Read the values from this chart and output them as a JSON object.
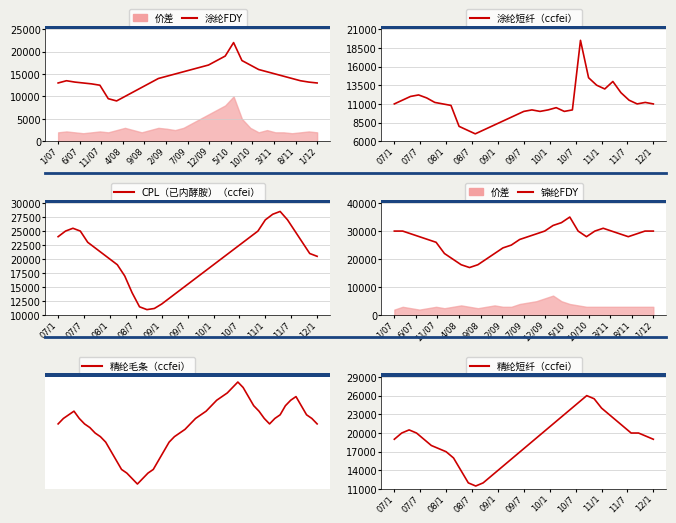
{
  "chart1": {
    "title": "价差 — 涂纶FDY",
    "legend1": "价差",
    "legend2": "涂纶FDY",
    "xticks": [
      "1/07",
      "6/07",
      "11/07",
      "4/08",
      "9/08",
      "2/09",
      "7/09",
      "12/09",
      "5/10",
      "10/10",
      "3/11",
      "8/11",
      "1/12"
    ],
    "ylim": [
      0,
      25000
    ],
    "yticks": [
      0,
      5000,
      10000,
      15000,
      20000,
      25000
    ],
    "line_color": "#cc0000",
    "fill_color": "#f4a0a0",
    "line_data": [
      13000,
      13500,
      13200,
      13000,
      12800,
      12500,
      9500,
      9000,
      10000,
      11000,
      12000,
      13000,
      14000,
      14500,
      15000,
      15500,
      16000,
      16500,
      17000,
      18000,
      19000,
      22000,
      18000,
      17000,
      16000,
      15500,
      15000,
      14500,
      14000,
      13500,
      13200,
      13000
    ],
    "fill_data": [
      2000,
      2200,
      2000,
      1800,
      2000,
      2200,
      2000,
      2500,
      3000,
      2500,
      2000,
      2500,
      3000,
      2800,
      2500,
      3000,
      4000,
      5000,
      6000,
      7000,
      8000,
      10000,
      5000,
      3000,
      2000,
      2500,
      2000,
      2000,
      1800,
      2000,
      2200,
      2000
    ]
  },
  "chart2": {
    "title": "涂纶短纤（ccfei）",
    "xticks": [
      "07/1",
      "07/7",
      "08/1",
      "08/7",
      "09/1",
      "09/7",
      "10/1",
      "10/7",
      "11/1",
      "11/7",
      "12/1"
    ],
    "ylim": [
      6000,
      21000
    ],
    "yticks": [
      6000,
      8500,
      11000,
      13500,
      16000,
      18500,
      21000
    ],
    "line_color": "#cc0000",
    "line_data": [
      11000,
      11500,
      12000,
      12200,
      11800,
      11200,
      11000,
      10800,
      8000,
      7500,
      7000,
      7500,
      8000,
      8500,
      9000,
      9500,
      10000,
      10200,
      10000,
      10200,
      10500,
      10000,
      10200,
      19500,
      14500,
      13500,
      13000,
      14000,
      12500,
      11500,
      11000,
      11200,
      11000
    ]
  },
  "chart3": {
    "title": "CPL（已内酵胺）（ccfei）",
    "xticks": [
      "07/1",
      "07/7",
      "08/1",
      "08/7",
      "09/1",
      "09/7",
      "10/1",
      "10/7",
      "11/1",
      "11/7",
      "12/1"
    ],
    "ylim": [
      10000,
      30000
    ],
    "yticks": [
      10000,
      12500,
      15000,
      17500,
      20000,
      22500,
      25000,
      27500,
      30000
    ],
    "line_color": "#cc0000",
    "line_data": [
      24000,
      25000,
      25500,
      25000,
      23000,
      22000,
      21000,
      20000,
      19000,
      17000,
      14000,
      11500,
      11000,
      11200,
      12000,
      13000,
      14000,
      15000,
      16000,
      17000,
      18000,
      19000,
      20000,
      21000,
      22000,
      23000,
      24000,
      25000,
      27000,
      28000,
      28500,
      27000,
      25000,
      23000,
      21000,
      20500
    ]
  },
  "chart4": {
    "title": "价差 — 锦纶FDY",
    "legend1": "价差",
    "legend2": "锦纶FDY",
    "xticks": [
      "1/07",
      "6/07",
      "11/07",
      "4/08",
      "9/08",
      "2/09",
      "7/09",
      "12/09",
      "5/10",
      "10/10",
      "3/11",
      "8/11",
      "1/12"
    ],
    "ylim": [
      0,
      40000
    ],
    "yticks": [
      0,
      10000,
      20000,
      30000,
      40000
    ],
    "line_color": "#cc0000",
    "fill_color": "#f4a0a0",
    "line_data": [
      30000,
      30000,
      29000,
      28000,
      27000,
      26000,
      22000,
      20000,
      18000,
      17000,
      18000,
      20000,
      22000,
      24000,
      25000,
      27000,
      28000,
      29000,
      30000,
      32000,
      33000,
      35000,
      30000,
      28000,
      30000,
      31000,
      30000,
      29000,
      28000,
      29000,
      30000,
      30000
    ],
    "fill_data": [
      2000,
      3000,
      2500,
      2000,
      2500,
      3000,
      2500,
      3000,
      3500,
      3000,
      2500,
      3000,
      3500,
      3000,
      3000,
      4000,
      4500,
      5000,
      6000,
      7000,
      5000,
      4000,
      3500,
      3000,
      3000,
      3000,
      3000,
      3000,
      3000,
      3000,
      3000,
      3000
    ]
  },
  "chart5": {
    "title": "精纶毛条（ccfei）",
    "line_color": "#cc0000",
    "line_data": [
      145,
      148,
      150,
      152,
      148,
      145,
      143,
      140,
      138,
      135,
      130,
      125,
      120,
      118,
      115,
      112,
      115,
      118,
      120,
      125,
      130,
      135,
      138,
      140,
      142,
      145,
      148,
      150,
      152,
      155,
      158,
      160,
      162,
      165,
      168,
      165,
      160,
      155,
      152,
      148,
      145,
      148,
      150,
      155,
      158,
      160,
      155,
      150,
      148,
      145
    ]
  },
  "chart6": {
    "title": "精纶短纤（ccfei）",
    "xticks": [
      "07/1",
      "07/7",
      "08/1",
      "08/7",
      "09/1",
      "09/7",
      "10/1",
      "10/7",
      "11/1",
      "11/7",
      "12/1"
    ],
    "ylim": [
      11000,
      29000
    ],
    "yticks": [
      11000,
      14000,
      17000,
      20000,
      23000,
      26000,
      29000
    ],
    "line_color": "#cc0000",
    "line_data": [
      19000,
      20000,
      20500,
      20000,
      19000,
      18000,
      17500,
      17000,
      16000,
      14000,
      12000,
      11500,
      12000,
      13000,
      14000,
      15000,
      16000,
      17000,
      18000,
      19000,
      20000,
      21000,
      22000,
      23000,
      24000,
      25000,
      26000,
      25500,
      24000,
      23000,
      22000,
      21000,
      20000,
      20000,
      19500,
      19000
    ]
  },
  "bg_color": "#f0f0eb",
  "plot_bg": "#ffffff",
  "title_fontsize": 9,
  "tick_fontsize": 7,
  "legend_fontsize": 8,
  "header_color": "#1a4480",
  "line_width": 1.2
}
